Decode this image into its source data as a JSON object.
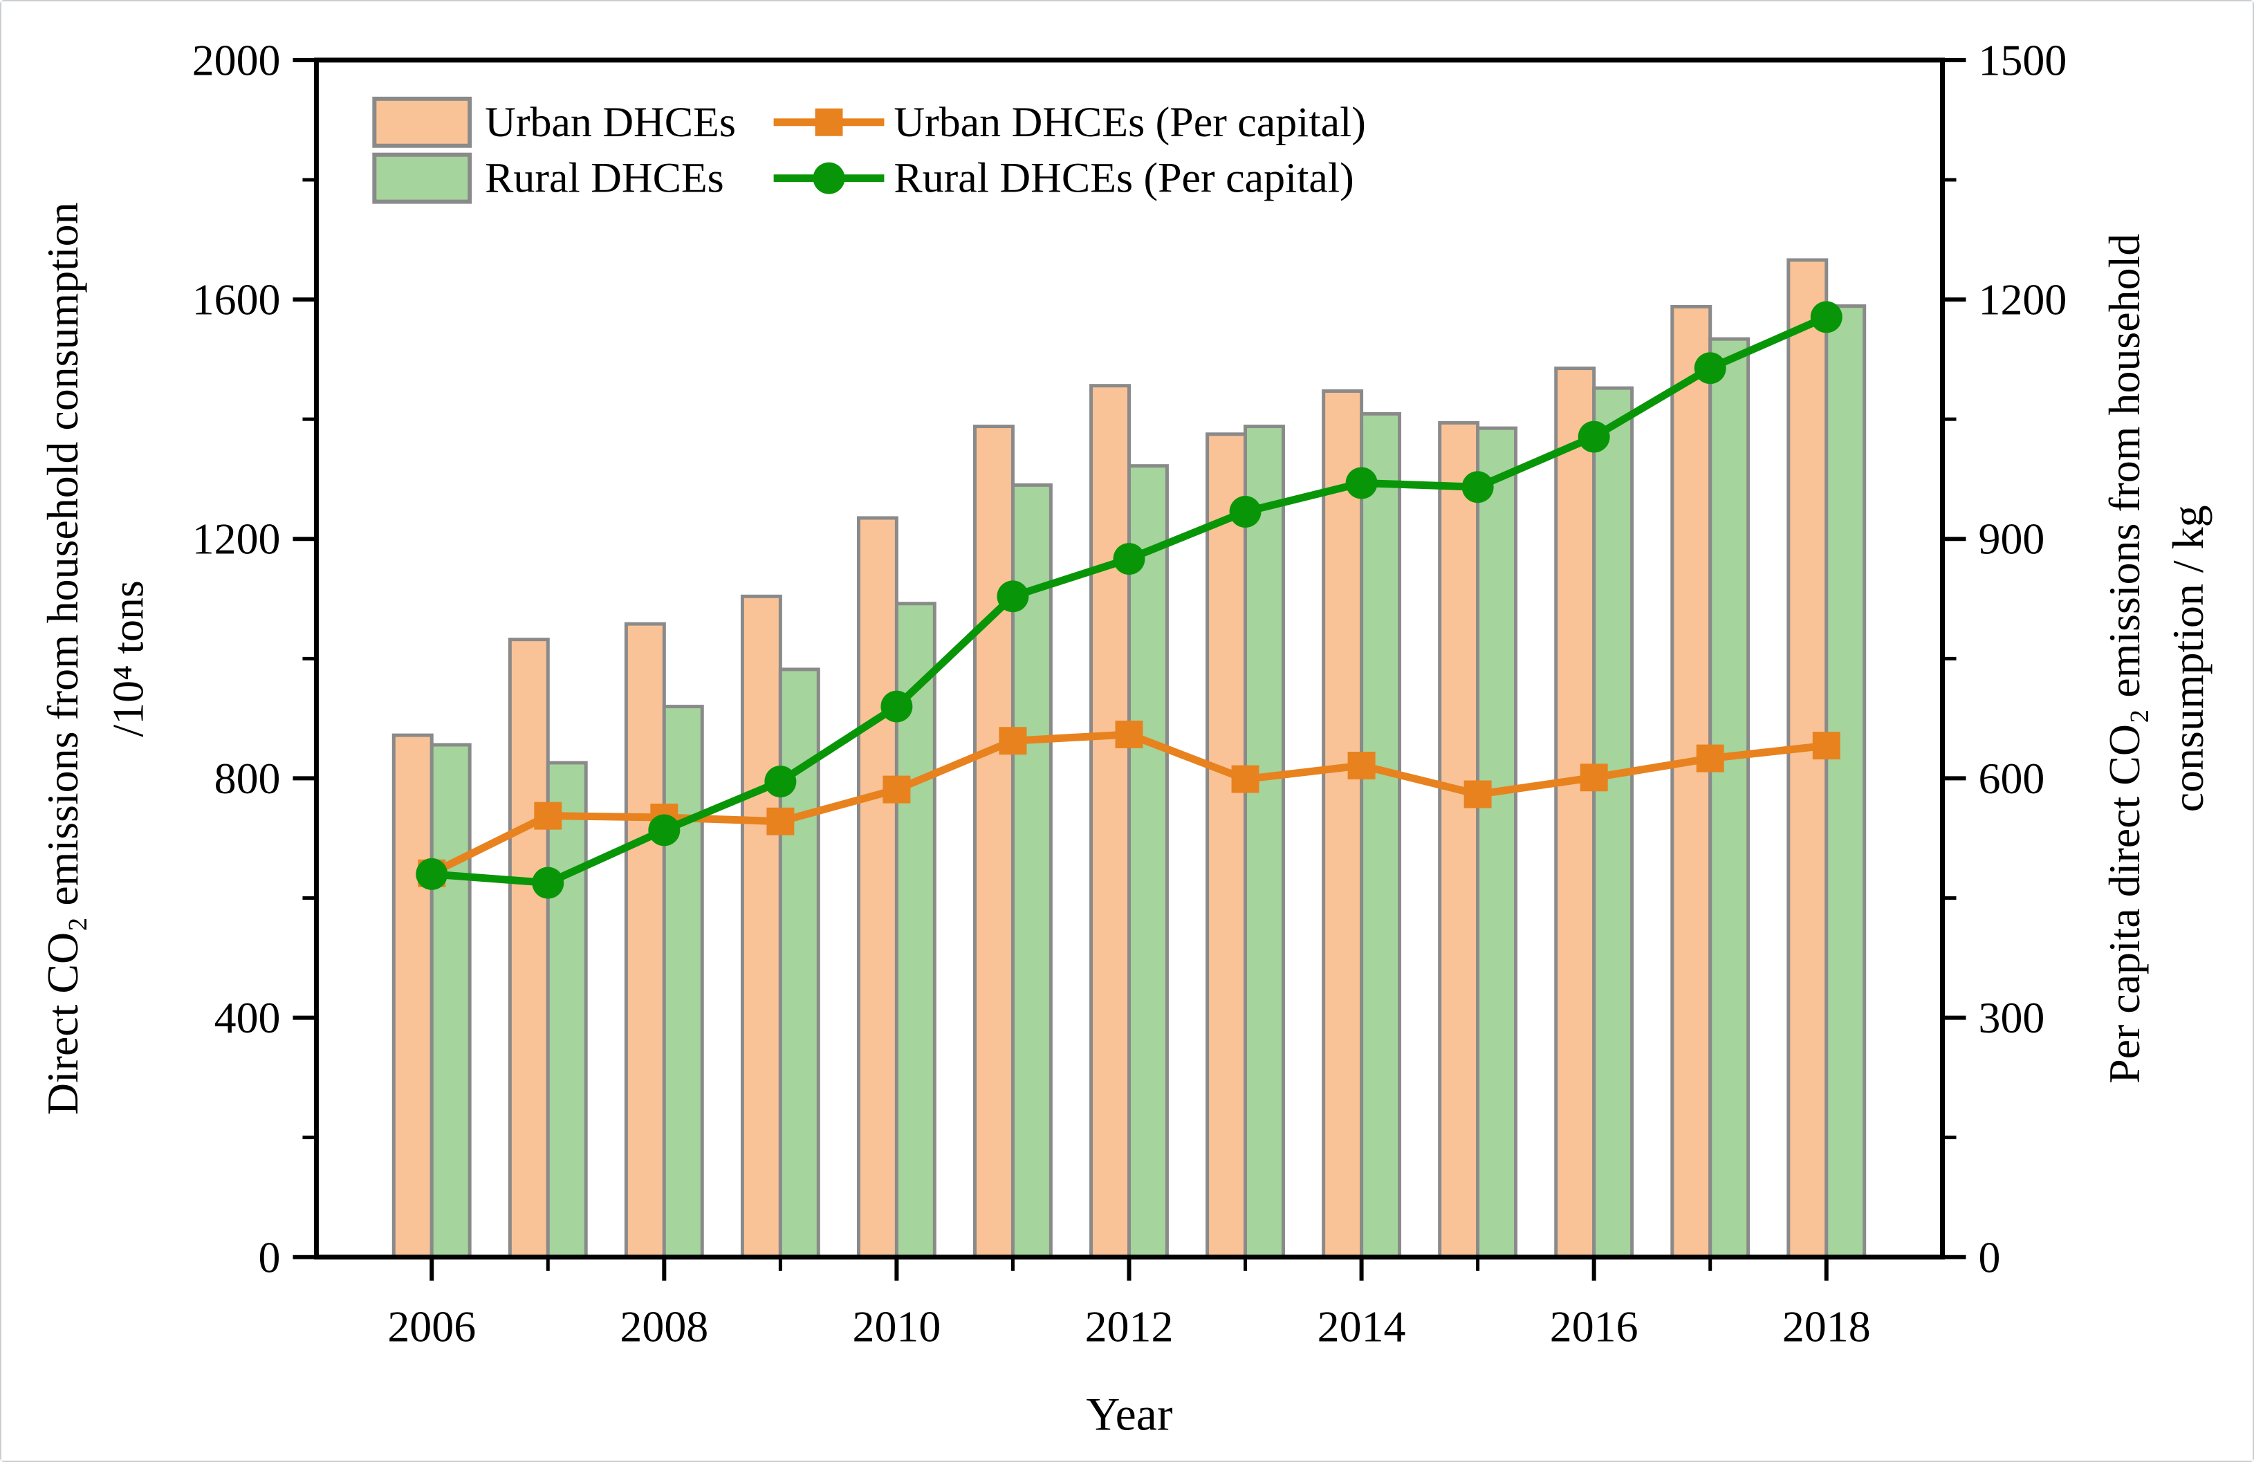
{
  "chart_data": {
    "type": "bar+line",
    "years": [
      2006,
      2007,
      2008,
      2009,
      2010,
      2011,
      2012,
      2013,
      2014,
      2015,
      2016,
      2017,
      2018
    ],
    "series": [
      {
        "name": "Urban DHCEs",
        "kind": "bar",
        "axis": "left",
        "values": [
          872,
          1032,
          1058,
          1104,
          1235,
          1388,
          1456,
          1375,
          1447,
          1394,
          1485,
          1588,
          1666
        ]
      },
      {
        "name": "Rural DHCEs",
        "kind": "bar",
        "axis": "left",
        "values": [
          856,
          826,
          920,
          982,
          1092,
          1290,
          1322,
          1388,
          1409,
          1385,
          1452,
          1534,
          1589
        ]
      },
      {
        "name": "Urban DHCEs (Per capital)",
        "kind": "line",
        "marker": "square",
        "axis": "right",
        "values": [
          481,
          553,
          551,
          546,
          586,
          647,
          655,
          599,
          616,
          580,
          601,
          625,
          641
        ]
      },
      {
        "name": "Rural DHCEs (Per capital)",
        "kind": "line",
        "marker": "circle",
        "axis": "right",
        "values": [
          480,
          469,
          535,
          596,
          690,
          828,
          875,
          934,
          970,
          965,
          1028,
          1114,
          1178
        ]
      }
    ],
    "left_axis": {
      "label_line1": "Direct CO₂ emissions from household consumption",
      "label_line2": "/10⁴ tons",
      "range": [
        0,
        2000
      ],
      "major_ticks": [
        0,
        400,
        800,
        1200,
        1600,
        2000
      ],
      "minor_step": 200
    },
    "right_axis": {
      "label_line1": "Per capita direct CO₂ emissions from household",
      "label_line2": "consumption / kg",
      "range": [
        0,
        1500
      ],
      "major_ticks": [
        0,
        300,
        600,
        900,
        1200,
        1500
      ],
      "minor_step": 150
    },
    "x_axis": {
      "label": "Year",
      "major_ticks": [
        2006,
        2008,
        2010,
        2012,
        2014,
        2016,
        2018
      ],
      "minor_ticks": [
        2007,
        2009,
        2011,
        2013,
        2015,
        2017
      ]
    },
    "legend": {
      "bar_items": [
        "Urban DHCEs",
        "Rural DHCEs"
      ],
      "line_items": [
        "Urban DHCEs (Per capital)",
        "Rural DHCEs (Per capital)"
      ]
    },
    "colors": {
      "urban_bar": "#fac397",
      "rural_bar": "#a5d49c",
      "bar_border": "#8a8a8a",
      "urban_line": "#e8821e",
      "rural_line": "#089608",
      "axis": "#000000",
      "background": "#ffffff"
    }
  }
}
